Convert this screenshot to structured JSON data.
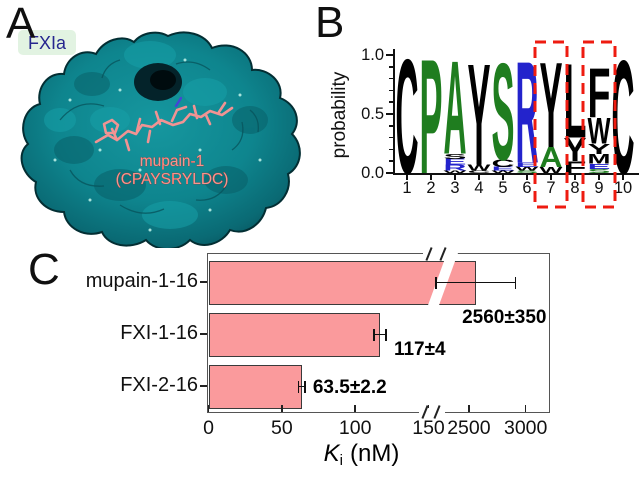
{
  "figure": {
    "a": "A",
    "b": "B",
    "c": "C"
  },
  "panel_a": {
    "protein_label": "FXIa",
    "peptide_name": "mupain-1",
    "peptide_sequence": "(CPAYSRYLDC)",
    "colors": {
      "surface": "#0e858e",
      "surface_dark": "#053d44",
      "peptide": "#f19393",
      "protein_label_text": "#26268f",
      "protein_label_bg": "#dff2df",
      "peptide_label": "#f7948f"
    }
  },
  "chart_data": [
    {
      "type": "sequence_logo",
      "ylabel": "probability",
      "ylim": [
        0,
        1
      ],
      "yticks": [
        {
          "v": 0.0,
          "label": "0.0"
        },
        {
          "v": 0.5,
          "label": "0.5"
        },
        {
          "v": 1.0,
          "label": "1.0"
        }
      ],
      "minor_yticks": [
        0.1,
        0.2,
        0.3,
        0.4,
        0.6,
        0.7,
        0.8,
        0.9
      ],
      "positions": [
        "1",
        "2",
        "3",
        "4",
        "5",
        "6",
        "7",
        "8",
        "9",
        "10"
      ],
      "highlighted_positions": [
        7,
        9
      ],
      "highlight_color": "#ee1b10",
      "columns": [
        {
          "pos": 1,
          "letters": [
            {
              "ch": "C",
              "p": 0.97,
              "color": "#000000"
            }
          ]
        },
        {
          "pos": 2,
          "letters": [
            {
              "ch": "P",
              "p": 0.97,
              "color": "#1f7d1f"
            }
          ]
        },
        {
          "pos": 3,
          "letters": [
            {
              "ch": "A",
              "p": 0.79,
              "color": "#1f7d1f"
            },
            {
              "ch": "S",
              "p": 0.045,
              "color": "#000000"
            },
            {
              "ch": "E",
              "p": 0.05,
              "color": "#2323cc"
            },
            {
              "ch": "R",
              "p": 0.05,
              "color": "#2323cc"
            },
            {
              "ch": "W",
              "p": 0.02,
              "color": "#000000"
            }
          ]
        },
        {
          "pos": 4,
          "letters": [
            {
              "ch": "Y",
              "p": 0.86,
              "color": "#000000"
            },
            {
              "ch": "W",
              "p": 0.05,
              "color": "#000000"
            },
            {
              "ch": "C",
              "p": 0.02,
              "color": "#000000"
            }
          ]
        },
        {
          "pos": 5,
          "letters": [
            {
              "ch": "S",
              "p": 0.82,
              "color": "#1f7d1f"
            },
            {
              "ch": "C",
              "p": 0.065,
              "color": "#000000"
            },
            {
              "ch": "E",
              "p": 0.03,
              "color": "#2323cc"
            },
            {
              "ch": "W",
              "p": 0.02,
              "color": "#000000"
            }
          ]
        },
        {
          "pos": 6,
          "letters": [
            {
              "ch": "R",
              "p": 0.86,
              "color": "#2323cc"
            },
            {
              "ch": "E",
              "p": 0.04,
              "color": "#2323cc"
            },
            {
              "ch": "W",
              "p": 0.03,
              "color": "#000000"
            },
            {
              "ch": "S",
              "p": 0.02,
              "color": "#1f7d1f"
            }
          ]
        },
        {
          "pos": 7,
          "letters": [
            {
              "ch": "Y",
              "p": 0.72,
              "color": "#000000"
            },
            {
              "ch": "A",
              "p": 0.17,
              "color": "#1f7d1f"
            },
            {
              "ch": "W",
              "p": 0.05,
              "color": "#000000"
            }
          ]
        },
        {
          "pos": 8,
          "letters": [
            {
              "ch": "L",
              "p": 0.63,
              "color": "#000000"
            },
            {
              "ch": "Y",
              "p": 0.2,
              "color": "#000000"
            },
            {
              "ch": "F",
              "p": 0.1,
              "color": "#000000"
            }
          ]
        },
        {
          "pos": 9,
          "letters": [
            {
              "ch": "F",
              "p": 0.42,
              "color": "#000000"
            },
            {
              "ch": "W",
              "p": 0.22,
              "color": "#000000"
            },
            {
              "ch": "Y",
              "p": 0.09,
              "color": "#000000"
            },
            {
              "ch": "M",
              "p": 0.08,
              "color": "#000000"
            },
            {
              "ch": "E",
              "p": 0.045,
              "color": "#2323cc"
            },
            {
              "ch": "S",
              "p": 0.035,
              "color": "#1f7d1f"
            }
          ]
        },
        {
          "pos": 10,
          "letters": [
            {
              "ch": "C",
              "p": 0.96,
              "color": "#000000"
            }
          ]
        }
      ]
    },
    {
      "type": "bar",
      "orientation": "horizontal",
      "categories": [
        "mupain-1-16",
        "FXI-1-16",
        "FXI-2-16"
      ],
      "values": [
        2560,
        117,
        63.5
      ],
      "errors": [
        350,
        4,
        2.2
      ],
      "value_labels": [
        "2560±350",
        "117±4",
        "63.5±2.2"
      ],
      "xticks": [
        {
          "v": 0,
          "label": "0"
        },
        {
          "v": 50,
          "label": "50"
        },
        {
          "v": 100,
          "label": "100"
        },
        {
          "v": 150,
          "label": "150"
        },
        {
          "v": 2500,
          "label": "2500"
        },
        {
          "v": 3000,
          "label": "3000"
        }
      ],
      "axis_break": {
        "from": 150,
        "to": 2500
      },
      "xlim": [
        0,
        3200
      ],
      "xlabel": {
        "symbol": "K",
        "subscript": "i",
        "unit": "(nM)"
      },
      "bar_color": "#fa9a9c",
      "bar_border": "#3a3a3a"
    }
  ]
}
